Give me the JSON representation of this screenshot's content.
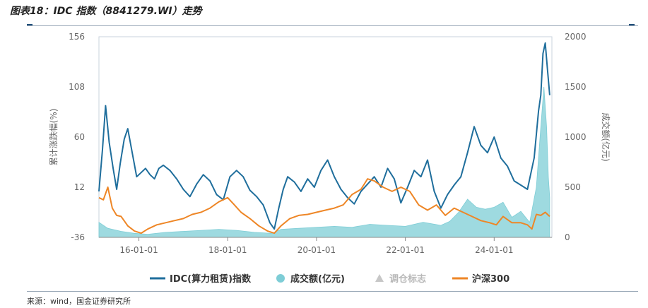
{
  "title": "图表18：IDC 指数（8841279.WI）走势",
  "source": "来源：wind，国金证券研究所",
  "chart_data": {
    "type": "line",
    "y_left": {
      "label": "累计涨跌幅(%)",
      "ticks": [
        -36,
        12,
        60,
        108,
        156
      ],
      "range": [
        -36,
        156
      ]
    },
    "y_right": {
      "label": "成交额(亿元)",
      "ticks": [
        0,
        500,
        1000,
        1500,
        2000
      ],
      "range": [
        0,
        2000
      ]
    },
    "x_ticks": [
      "16-01-01",
      "18-01-01",
      "20-01-01",
      "22-01-01",
      "24-01-01"
    ],
    "x_range": [
      2015.1,
      2025.3
    ],
    "x_tick_values": [
      2016,
      2018,
      2020,
      2022,
      2024
    ],
    "legend": [
      {
        "key": "idc",
        "label": "IDC(算力租赁)指数",
        "symbol": "line",
        "color": "#1f6e9c"
      },
      {
        "key": "volume",
        "label": "成交额(亿元)",
        "symbol": "circle",
        "color": "#7ecdd6"
      },
      {
        "key": "flag",
        "label": "调仓标志",
        "symbol": "triangle",
        "color": "#c7c7c7"
      },
      {
        "key": "hs300",
        "label": "沪深300",
        "symbol": "line",
        "color": "#ee8626"
      }
    ],
    "series": [
      {
        "name": "IDC(算力租赁)指数",
        "axis": "left",
        "color": "#1f6e9c",
        "x": [
          2015.1,
          2015.18,
          2015.25,
          2015.33,
          2015.42,
          2015.5,
          2015.58,
          2015.67,
          2015.75,
          2015.85,
          2015.95,
          2016.05,
          2016.15,
          2016.25,
          2016.35,
          2016.45,
          2016.55,
          2016.7,
          2016.85,
          2017.0,
          2017.15,
          2017.3,
          2017.45,
          2017.6,
          2017.75,
          2017.9,
          2018.05,
          2018.2,
          2018.35,
          2018.5,
          2018.65,
          2018.8,
          2018.95,
          2019.05,
          2019.15,
          2019.25,
          2019.35,
          2019.5,
          2019.65,
          2019.8,
          2019.95,
          2020.1,
          2020.25,
          2020.4,
          2020.55,
          2020.7,
          2020.85,
          2021.0,
          2021.15,
          2021.3,
          2021.45,
          2021.6,
          2021.75,
          2021.9,
          2022.05,
          2022.2,
          2022.35,
          2022.5,
          2022.65,
          2022.8,
          2022.95,
          2023.1,
          2023.25,
          2023.4,
          2023.55,
          2023.7,
          2023.85,
          2024.0,
          2024.15,
          2024.3,
          2024.45,
          2024.6,
          2024.75,
          2024.9,
          2025.0,
          2025.05,
          2025.1,
          2025.15,
          2025.2,
          2025.25
        ],
        "y": [
          8,
          48,
          90,
          55,
          30,
          10,
          35,
          58,
          68,
          45,
          22,
          26,
          30,
          24,
          20,
          30,
          33,
          28,
          20,
          10,
          3,
          15,
          24,
          18,
          5,
          0,
          22,
          28,
          22,
          9,
          3,
          -5,
          -22,
          -28,
          -8,
          10,
          22,
          17,
          8,
          20,
          12,
          28,
          38,
          22,
          10,
          2,
          -4,
          8,
          15,
          22,
          12,
          30,
          20,
          -3,
          12,
          28,
          22,
          38,
          8,
          -8,
          5,
          14,
          22,
          45,
          70,
          52,
          45,
          60,
          40,
          32,
          18,
          14,
          10,
          40,
          85,
          100,
          140,
          150,
          125,
          100
        ]
      },
      {
        "name": "沪深300",
        "axis": "left",
        "color": "#ee8626",
        "x": [
          2015.1,
          2015.2,
          2015.3,
          2015.4,
          2015.5,
          2015.6,
          2015.75,
          2015.9,
          2016.05,
          2016.2,
          2016.4,
          2016.6,
          2016.8,
          2017.0,
          2017.2,
          2017.4,
          2017.6,
          2017.8,
          2018.0,
          2018.15,
          2018.3,
          2018.5,
          2018.7,
          2018.9,
          2019.05,
          2019.2,
          2019.4,
          2019.6,
          2019.8,
          2020.0,
          2020.2,
          2020.4,
          2020.6,
          2020.8,
          2021.0,
          2021.15,
          2021.3,
          2021.5,
          2021.7,
          2021.9,
          2022.1,
          2022.3,
          2022.5,
          2022.7,
          2022.9,
          2023.1,
          2023.3,
          2023.5,
          2023.7,
          2023.9,
          2024.05,
          2024.2,
          2024.4,
          2024.6,
          2024.75,
          2024.85,
          2024.95,
          2025.05,
          2025.15,
          2025.25
        ],
        "y": [
          2,
          0,
          12,
          -8,
          -15,
          -16,
          -25,
          -30,
          -32,
          -28,
          -24,
          -22,
          -20,
          -18,
          -14,
          -12,
          -8,
          -2,
          2,
          -5,
          -12,
          -18,
          -25,
          -30,
          -32,
          -25,
          -18,
          -15,
          -14,
          -12,
          -10,
          -8,
          -5,
          5,
          10,
          20,
          18,
          12,
          8,
          12,
          8,
          -5,
          -10,
          -5,
          -15,
          -8,
          -12,
          -16,
          -20,
          -22,
          -24,
          -16,
          -22,
          -22,
          -24,
          -28,
          -14,
          -15,
          -12,
          -16
        ]
      },
      {
        "name": "成交额(亿元)",
        "axis": "right",
        "color": "#7ecdd6",
        "x": [
          2015.1,
          2015.3,
          2015.6,
          2015.9,
          2016.2,
          2016.6,
          2017.0,
          2017.4,
          2017.8,
          2018.2,
          2018.6,
          2019.0,
          2019.2,
          2019.6,
          2020.0,
          2020.4,
          2020.8,
          2021.2,
          2021.6,
          2022.0,
          2022.4,
          2022.8,
          2023.0,
          2023.2,
          2023.4,
          2023.6,
          2023.8,
          2024.0,
          2024.2,
          2024.4,
          2024.6,
          2024.8,
          2024.95,
          2025.05,
          2025.12,
          2025.18,
          2025.22,
          2025.25
        ],
        "y": [
          150,
          90,
          60,
          40,
          30,
          50,
          60,
          70,
          80,
          70,
          50,
          40,
          80,
          90,
          100,
          110,
          100,
          130,
          120,
          110,
          150,
          120,
          160,
          250,
          380,
          300,
          280,
          300,
          350,
          200,
          260,
          150,
          500,
          1100,
          1500,
          1100,
          600,
          400
        ]
      }
    ]
  }
}
